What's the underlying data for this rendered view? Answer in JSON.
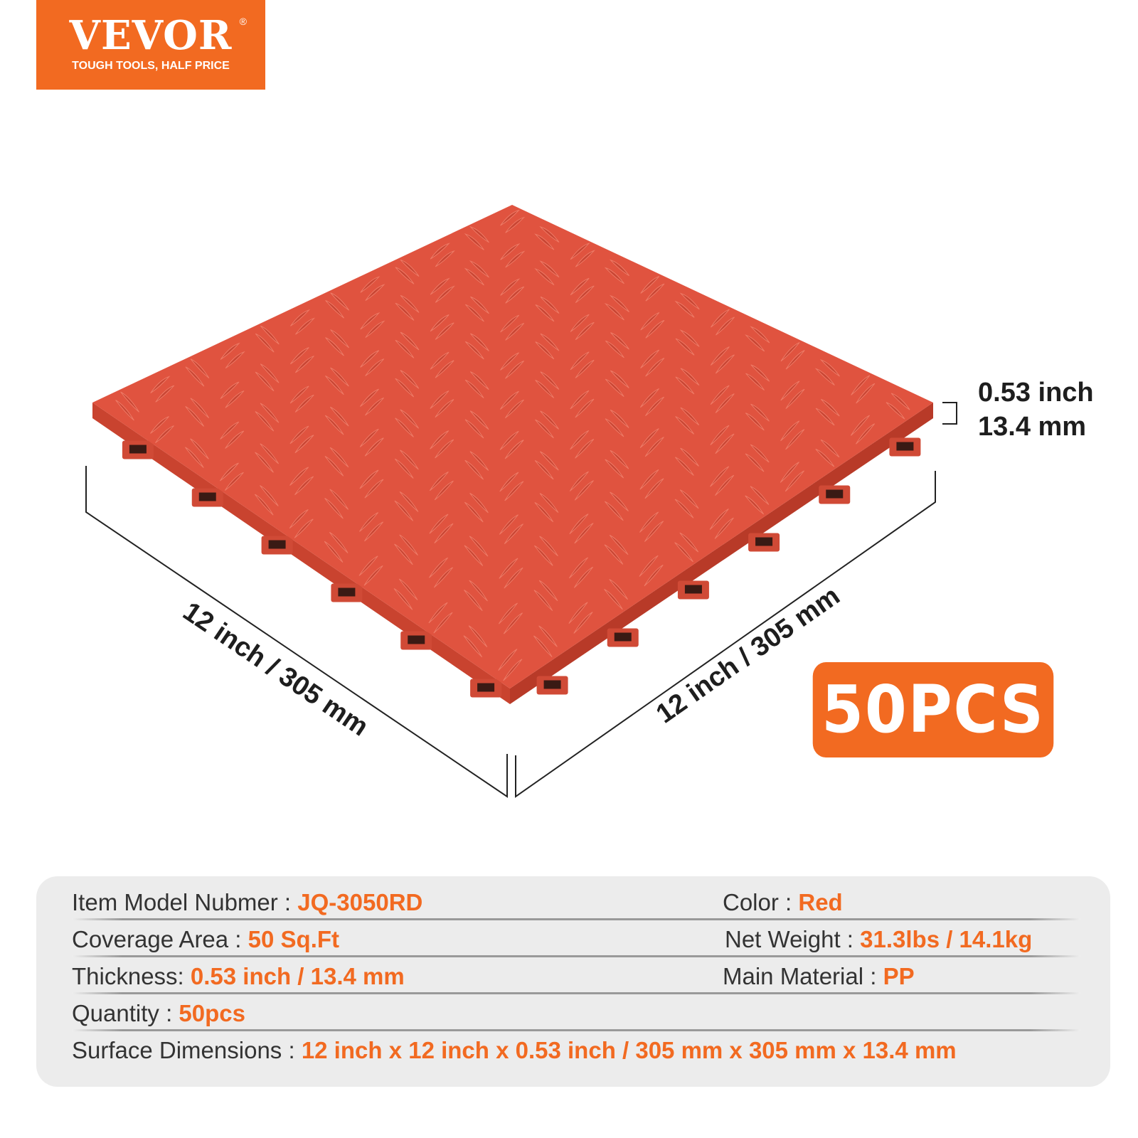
{
  "logo": {
    "brand": "VEVOR",
    "registered": "®",
    "tagline": "TOUGH TOOLS, HALF PRICE"
  },
  "colors": {
    "accent": "#f26a21",
    "tile": "#e0533f",
    "panel": "#ececec"
  },
  "product": {
    "thickness_inch": "0.53 inch",
    "thickness_mm": "13.4 mm",
    "left_dimension": "12 inch / 305 mm",
    "right_dimension": "12 inch / 305 mm",
    "quantity_badge": "50PCS"
  },
  "specs": [
    [
      {
        "label": "Item Model Nubmer : ",
        "value": "JQ-3050RD"
      },
      {
        "label": "Color : ",
        "value": "Red"
      }
    ],
    [
      {
        "label": "Coverage Area : ",
        "value": "50 Sq.Ft"
      },
      {
        "label": "Net Weight : ",
        "value": "31.3lbs / 14.1kg"
      }
    ],
    [
      {
        "label": "Thickness: ",
        "value": "0.53 inch / 13.4 mm"
      },
      {
        "label": "Main Material : ",
        "value": "PP"
      }
    ],
    [
      {
        "label": "Quantity : ",
        "value": "50pcs"
      }
    ],
    [
      {
        "label": "Surface Dimensions : ",
        "value": "12 inch x 12 inch x 0.53 inch / 305 mm x 305 mm x 13.4 mm"
      }
    ]
  ]
}
